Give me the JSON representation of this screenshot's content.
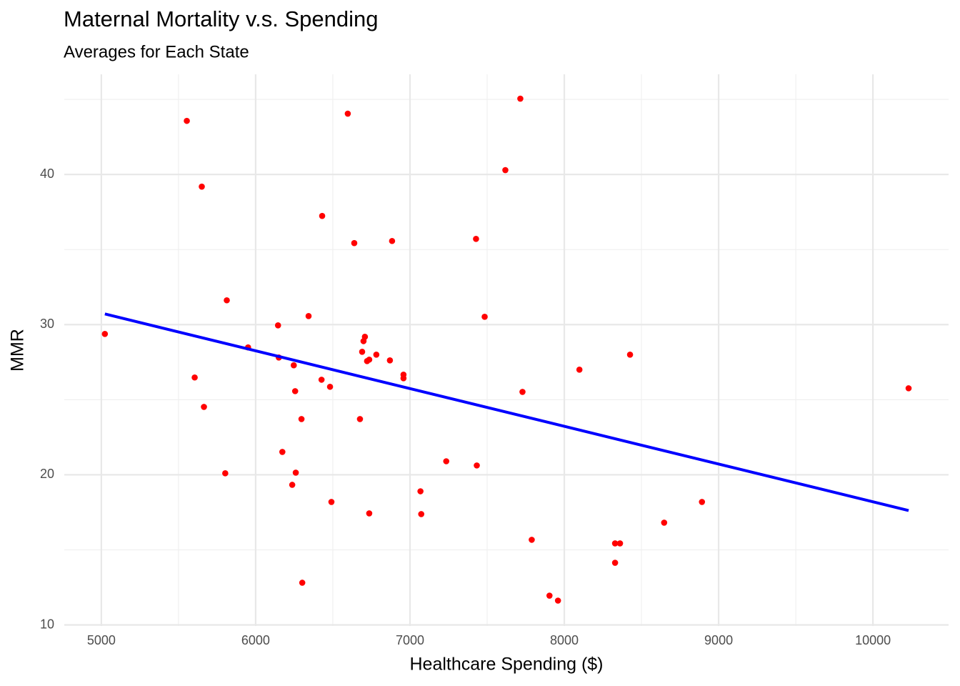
{
  "chart_data": {
    "type": "scatter",
    "title": "Maternal Mortality v.s. Spending",
    "subtitle": "Averages for Each State",
    "x_label": "Healthcare Spending ($)",
    "y_label": "MMR",
    "x": [
      5023,
      5554,
      5651,
      5605,
      5665,
      5813,
      5803,
      5951,
      6145,
      6150,
      6173,
      6247,
      6256,
      6260,
      6237,
      6297,
      6302,
      6343,
      6431,
      6427,
      6482,
      6491,
      6597,
      6639,
      6676,
      6690,
      6699,
      6708,
      6722,
      6736,
      6736,
      6782,
      6870,
      6884,
      6958,
      6958,
      7068,
      7073,
      7235,
      7428,
      7433,
      7484,
      7618,
      7715,
      7729,
      7789,
      7904,
      7959,
      8098,
      8329,
      8361,
      8329,
      8426,
      8647,
      8892,
      10231
    ],
    "values": [
      29.38,
      43.57,
      39.19,
      26.48,
      24.52,
      31.62,
      20.1,
      28.48,
      29.95,
      27.81,
      21.52,
      27.29,
      25.57,
      20.14,
      19.33,
      23.71,
      12.81,
      30.57,
      37.24,
      26.33,
      25.86,
      18.19,
      44.05,
      35.43,
      23.71,
      28.19,
      28.9,
      29.19,
      27.57,
      27.67,
      17.43,
      28.0,
      27.62,
      35.57,
      26.67,
      26.43,
      18.9,
      17.38,
      20.9,
      35.71,
      20.62,
      30.52,
      40.29,
      45.05,
      25.52,
      15.67,
      11.95,
      11.62,
      27.0,
      15.43,
      15.43,
      14.14,
      28.0,
      16.81,
      18.19,
      25.76
    ],
    "color": "#ff0000",
    "fit": {
      "x": [
        5023,
        10231
      ],
      "values": [
        30.71,
        17.62
      ],
      "color": "#0000ff"
    },
    "xlim": [
      4760,
      10490
    ],
    "ylim": [
      9.93,
      46.67
    ],
    "xticks": [
      5000,
      6000,
      7000,
      8000,
      9000,
      10000
    ],
    "yticks": [
      10,
      20,
      30,
      40
    ],
    "x_minor_ticks": [
      5500,
      6500,
      7500,
      8500,
      9500
    ],
    "y_minor_ticks": [
      15,
      25,
      35,
      45
    ],
    "grid": true
  }
}
